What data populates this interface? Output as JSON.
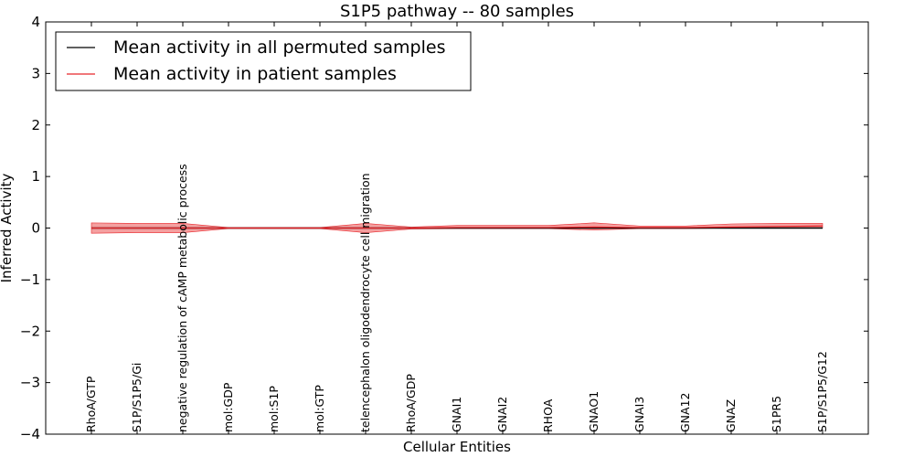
{
  "chart_data": {
    "type": "line",
    "title": "S1P5 pathway -- 80 samples",
    "xlabel": "Cellular Entities",
    "ylabel": "Inferred Activity",
    "ylim": [
      -4,
      4
    ],
    "yticks": [
      4,
      3,
      2,
      1,
      0,
      -1,
      -2,
      -3,
      -4
    ],
    "ytick_labels": [
      "4",
      "3",
      "2",
      "1",
      "0",
      "−1",
      "−2",
      "−3",
      "−4"
    ],
    "grid": false,
    "legend_position": "top-left",
    "categories": [
      "RhoA/GTP",
      "S1P/S1P5/Gi",
      "negative regulation of cAMP metabolic process",
      "mol:GDP",
      "mol:S1P",
      "mol:GTP",
      "telencephalon oligodendrocyte cell migration",
      "RhoA/GDP",
      "GNAI1",
      "GNAI2",
      "RHOA",
      "GNAO1",
      "GNAI3",
      "GNA12",
      "GNAZ",
      "S1PR5",
      "S1P/S1P5/G12"
    ],
    "series": [
      {
        "name": "Mean activity in all permuted samples",
        "color": "#000000",
        "values": [
          0,
          0,
          0,
          0,
          0,
          0,
          0,
          0,
          0,
          0,
          0,
          0,
          0,
          0,
          0,
          0,
          0
        ]
      },
      {
        "name": "Mean activity in patient samples",
        "color": "#e8262b",
        "values": [
          0,
          0,
          0,
          0,
          0,
          0,
          0,
          0,
          0.01,
          0.01,
          0.01,
          0.02,
          0.01,
          0.01,
          0.02,
          0.03,
          0.04
        ]
      }
    ],
    "band": {
      "series": "Mean activity in patient samples",
      "color": "#f08080",
      "upper": [
        0.1,
        0.09,
        0.09,
        0.01,
        0.01,
        0.01,
        0.09,
        0.02,
        0.05,
        0.05,
        0.05,
        0.1,
        0.04,
        0.04,
        0.08,
        0.09,
        0.09
      ],
      "lower": [
        -0.1,
        -0.09,
        -0.09,
        -0.01,
        -0.01,
        -0.01,
        -0.09,
        -0.02,
        -0.01,
        -0.01,
        -0.01,
        -0.04,
        -0.01,
        -0.01,
        0.0,
        0.0,
        0.0
      ]
    }
  }
}
